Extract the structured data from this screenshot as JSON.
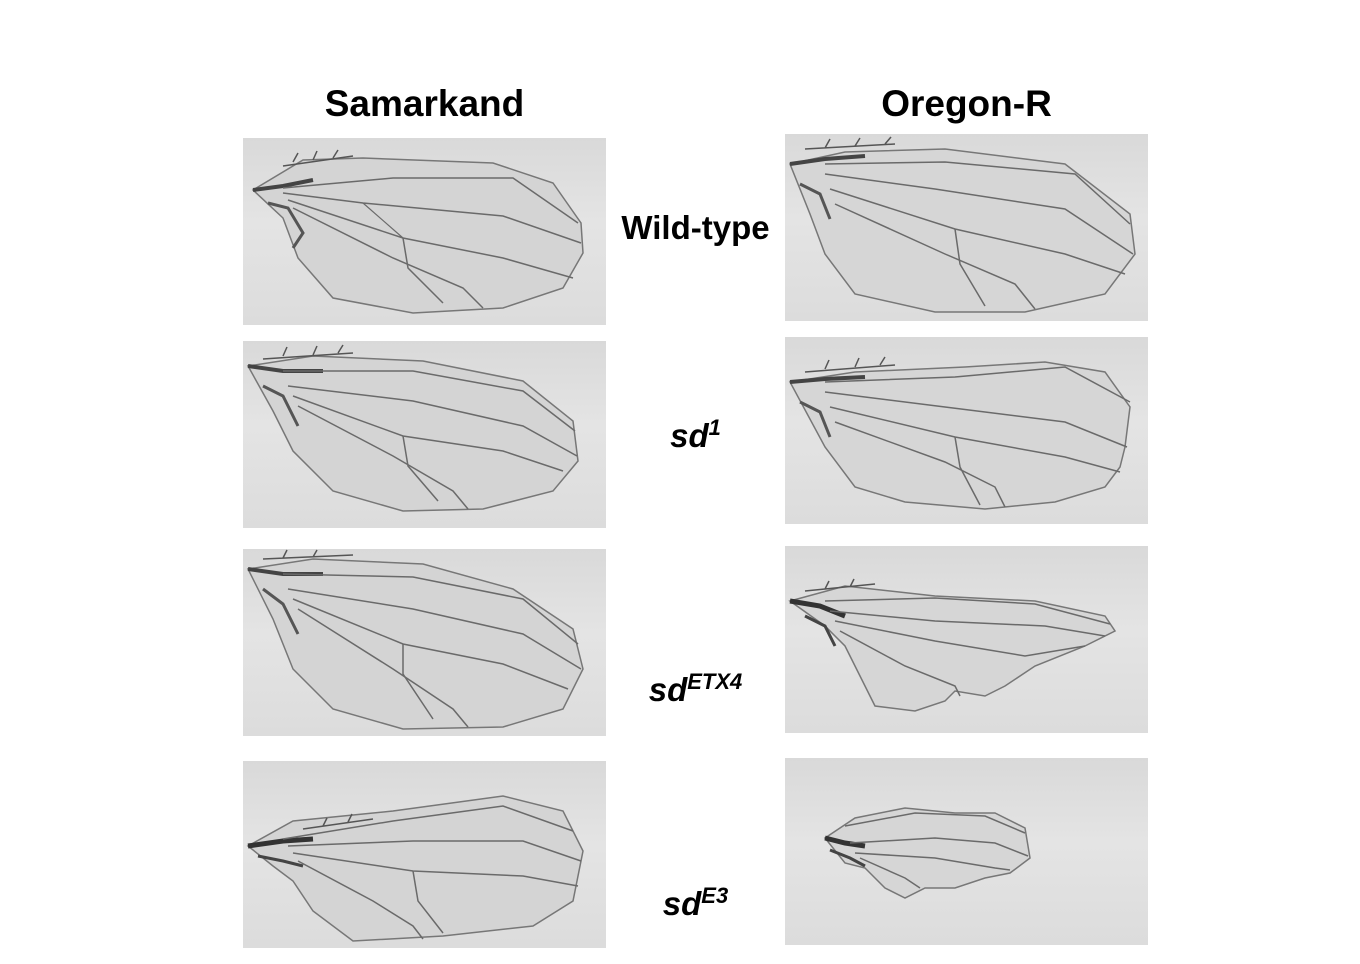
{
  "columns": {
    "left": "Samarkand",
    "right": "Oregon-R"
  },
  "rows": [
    {
      "base": "Wild-type",
      "sup": ""
    },
    {
      "base": "sd",
      "sup": "1"
    },
    {
      "base": "sd",
      "sup": "ETX4"
    },
    {
      "base": "sd",
      "sup": "E3"
    }
  ],
  "colors": {
    "panel_bg": "#e0e0e0",
    "wing_fill": "#d3d3d3",
    "vein": "#6a6a6a",
    "hinge": "#4a4a4a"
  }
}
